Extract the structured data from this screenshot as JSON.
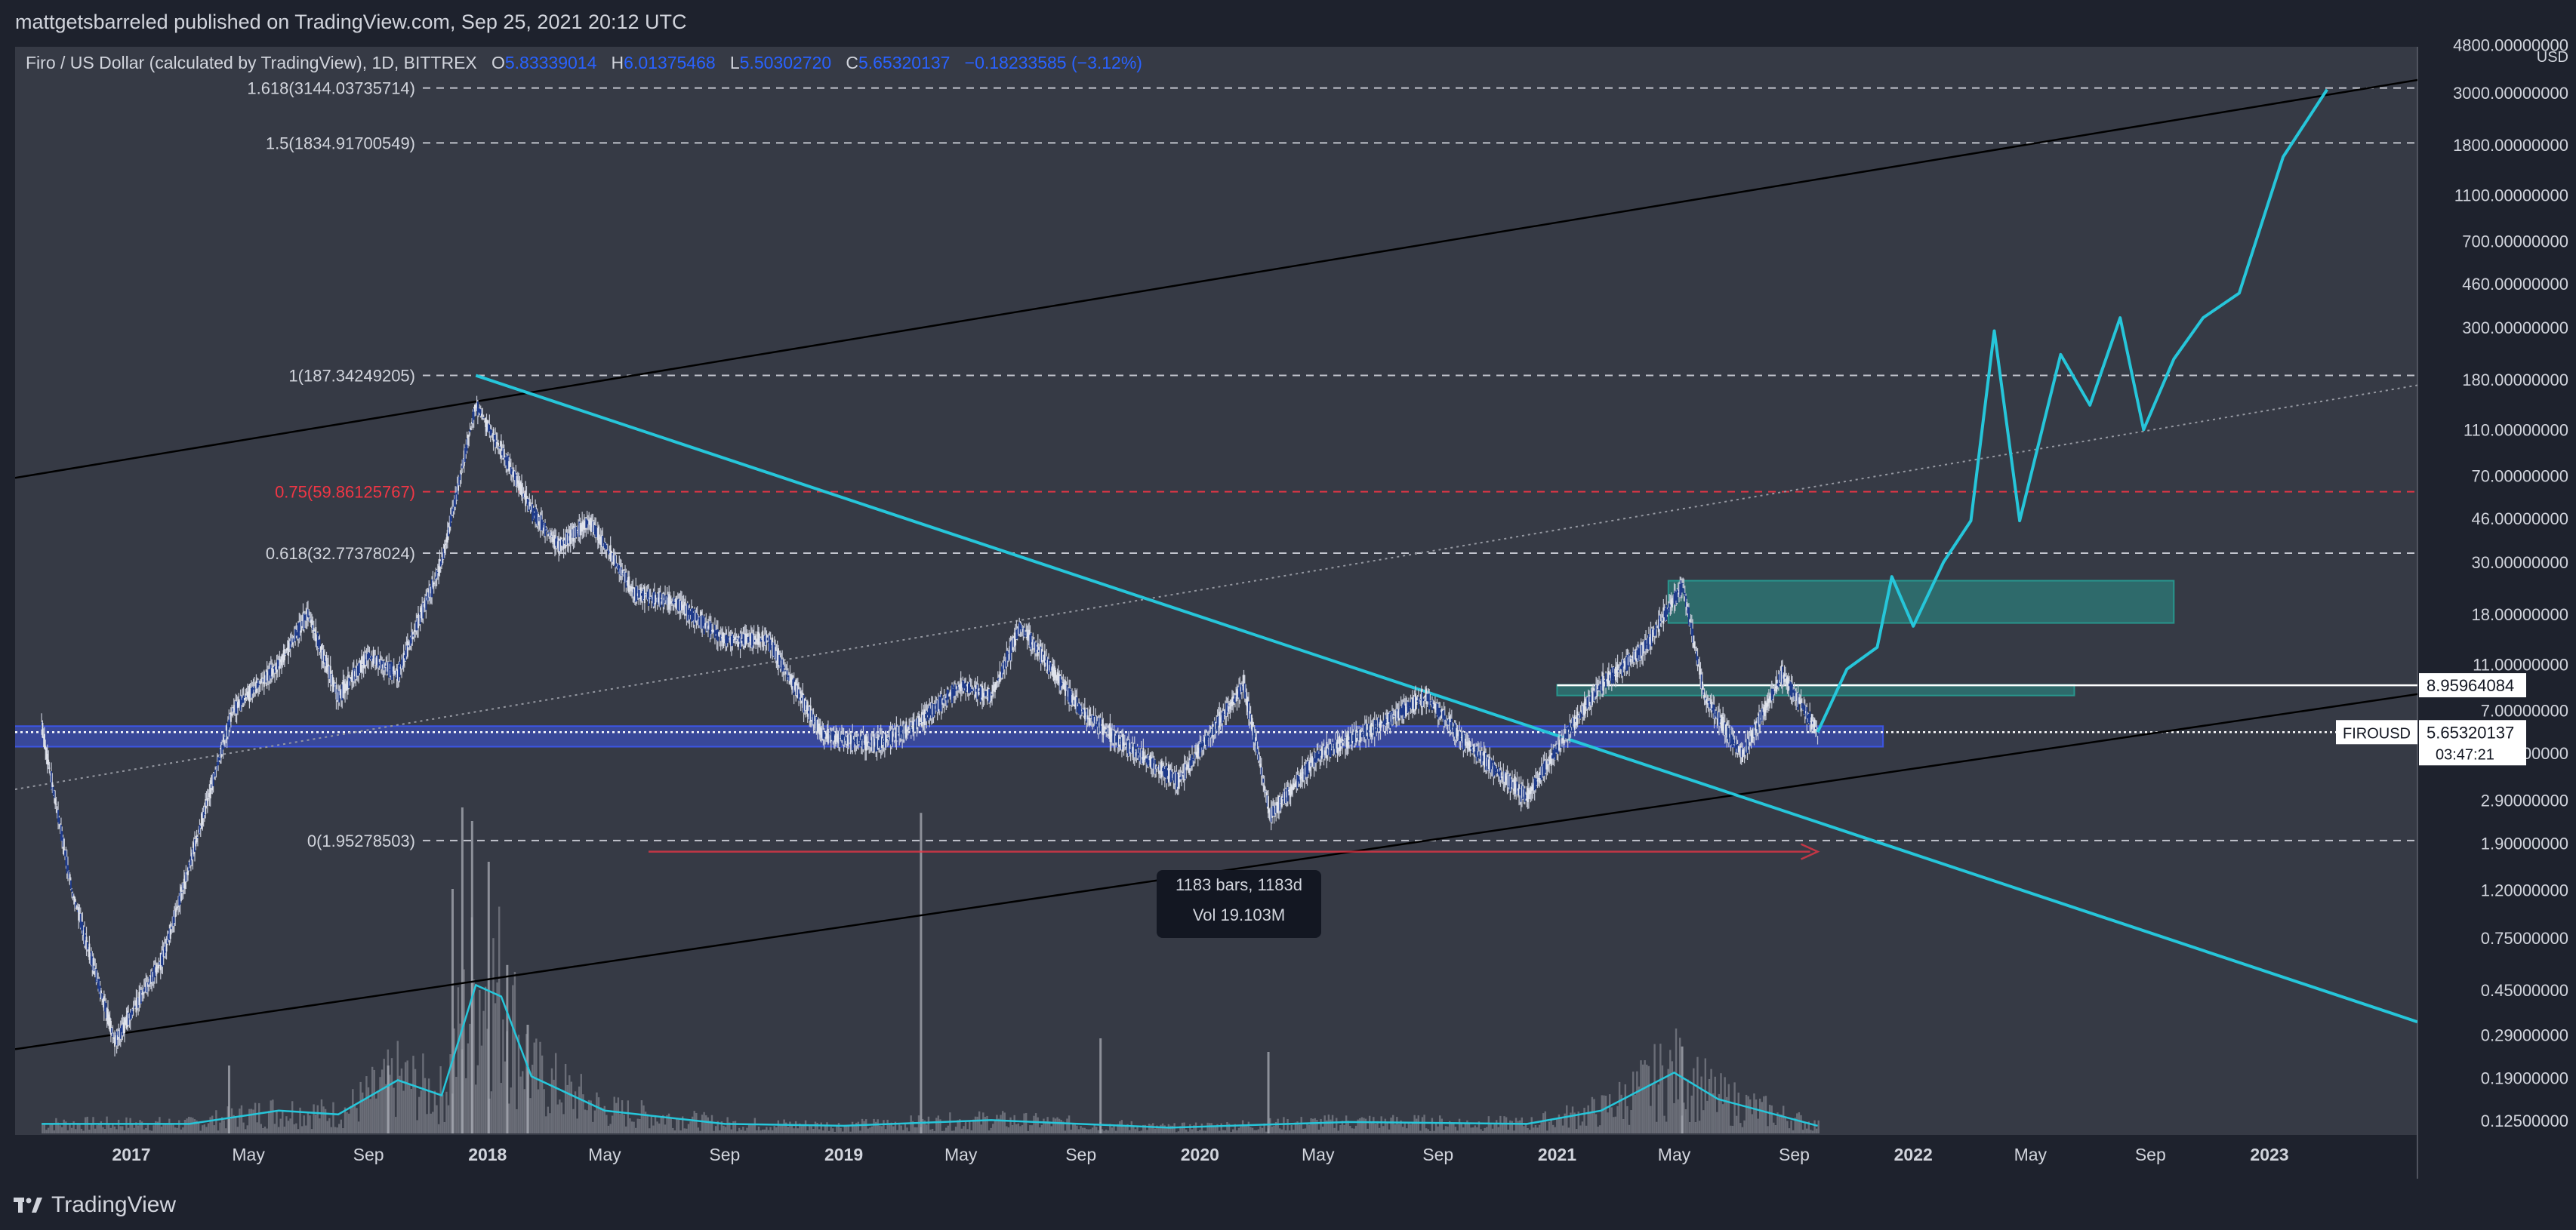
{
  "header": {
    "publish_line": "mattgetsbarreled published on TradingView.com, Sep 25, 2021 20:12 UTC"
  },
  "legend": {
    "symbol": "Firo / US Dollar (calculated by TradingView), 1D, BITTREX",
    "open_label": "O",
    "open": "5.83339014",
    "high_label": "H",
    "high": "6.01375468",
    "low_label": "L",
    "low": "5.50302720",
    "close_label": "C",
    "close": "5.65320137",
    "change": "−0.18233585 (−3.12%)"
  },
  "measure_box": {
    "line1": "1183 bars, 1183d",
    "line2": "Vol 19.103M"
  },
  "price_tags": {
    "level_tag": "8.95964084",
    "symbol_tag": "FIROUSD",
    "current_price": "5.65320137",
    "countdown": "03:47:21"
  },
  "footer": {
    "brand": "TradingView"
  },
  "colors": {
    "background": "#1e222d",
    "plot_background": "#363a45",
    "candle": "#c5c9d6",
    "trendline_cyan": "#26c6da",
    "fib_red": "#f23645",
    "zone_teal": "#26a69a",
    "zone_blue": "#3d5afe",
    "volume_ma": "#26c6da"
  },
  "chart_data": {
    "type": "candlestick",
    "title": "Firo / US Dollar (calculated by TradingView), 1D, BITTREX",
    "yscale": "log",
    "y_axis_unit": "USD",
    "y_ticks": [
      "4800.00000000",
      "3000.00000000",
      "1800.00000000",
      "1100.00000000",
      "700.00000000",
      "460.00000000",
      "300.00000000",
      "180.00000000",
      "110.00000000",
      "70.00000000",
      "46.00000000",
      "30.00000000",
      "18.00000000",
      "11.00000000",
      "7.00000000",
      "4.60000000",
      "2.90000000",
      "1.90000000",
      "1.20000000",
      "0.75000000",
      "0.45000000",
      "0.29000000",
      "0.19000000",
      "0.12500000"
    ],
    "x_ticks": [
      "2017",
      "May",
      "Sep",
      "2018",
      "May",
      "Sep",
      "2019",
      "May",
      "Sep",
      "2020",
      "May",
      "Sep",
      "2021",
      "May",
      "Sep",
      "2022",
      "May",
      "Sep",
      "2023"
    ],
    "fib_levels": [
      {
        "label": "1.618(3144.03735714)",
        "value": 3144.03735714,
        "color": "#d1d4dc"
      },
      {
        "label": "1.5(1834.91700549)",
        "value": 1834.91700549,
        "color": "#d1d4dc"
      },
      {
        "label": "1(187.34249205)",
        "value": 187.34249205,
        "color": "#d1d4dc"
      },
      {
        "label": "0.75(59.86125767)",
        "value": 59.86125767,
        "color": "#f23645"
      },
      {
        "label": "0.618(32.77378024)",
        "value": 32.77378024,
        "color": "#d1d4dc"
      },
      {
        "label": "0(1.95278503)",
        "value": 1.95278503,
        "color": "#d1d4dc"
      }
    ],
    "price_path": [
      [
        "2016-10-01",
        6.0
      ],
      [
        "2016-11-01",
        1.2
      ],
      [
        "2016-12-15",
        0.27
      ],
      [
        "2017-02-01",
        0.6
      ],
      [
        "2017-03-01",
        1.5
      ],
      [
        "2017-04-15",
        7.0
      ],
      [
        "2017-06-01",
        11.0
      ],
      [
        "2017-07-01",
        18.0
      ],
      [
        "2017-08-01",
        8.0
      ],
      [
        "2017-09-01",
        12.0
      ],
      [
        "2017-10-01",
        10.0
      ],
      [
        "2017-11-15",
        30.0
      ],
      [
        "2017-12-20",
        140.0
      ],
      [
        "2018-01-15",
        90.0
      ],
      [
        "2018-02-15",
        50.0
      ],
      [
        "2018-03-15",
        35.0
      ],
      [
        "2018-04-15",
        45.0
      ],
      [
        "2018-06-01",
        22.0
      ],
      [
        "2018-07-15",
        20.0
      ],
      [
        "2018-09-01",
        14.0
      ],
      [
        "2018-10-15",
        14.0
      ],
      [
        "2018-12-10",
        5.5
      ],
      [
        "2019-02-01",
        5.0
      ],
      [
        "2019-03-15",
        6.0
      ],
      [
        "2019-05-01",
        9.0
      ],
      [
        "2019-06-01",
        8.0
      ],
      [
        "2019-07-01",
        16.0
      ],
      [
        "2019-09-01",
        7.0
      ],
      [
        "2019-10-15",
        5.0
      ],
      [
        "2019-12-10",
        3.5
      ],
      [
        "2020-02-15",
        9.0
      ],
      [
        "2020-03-13",
        2.5
      ],
      [
        "2020-05-01",
        4.5
      ],
      [
        "2020-07-01",
        6.0
      ],
      [
        "2020-08-20",
        8.0
      ],
      [
        "2020-10-01",
        5.0
      ],
      [
        "2020-12-01",
        3.0
      ],
      [
        "2021-01-10",
        5.5
      ],
      [
        "2021-02-15",
        9.0
      ],
      [
        "2021-04-01",
        13.0
      ],
      [
        "2021-05-10",
        24.0
      ],
      [
        "2021-06-01",
        8.0
      ],
      [
        "2021-07-10",
        4.5
      ],
      [
        "2021-08-20",
        10.0
      ],
      [
        "2021-09-25",
        5.65
      ]
    ],
    "projection_path": [
      [
        "2021-09-25",
        5.65
      ],
      [
        "2021-10-25",
        10.5
      ],
      [
        "2021-11-25",
        13.0
      ],
      [
        "2021-12-10",
        26.0
      ],
      [
        "2022-01-01",
        16.0
      ],
      [
        "2022-02-01",
        30.0
      ],
      [
        "2022-03-01",
        45.0
      ],
      [
        "2022-03-25",
        290.0
      ],
      [
        "2022-04-20",
        45.0
      ],
      [
        "2022-06-01",
        230.0
      ],
      [
        "2022-07-01",
        140.0
      ],
      [
        "2022-08-01",
        330.0
      ],
      [
        "2022-08-25",
        110.0
      ],
      [
        "2022-09-25",
        220.0
      ],
      [
        "2022-10-25",
        330.0
      ],
      [
        "2022-12-01",
        420.0
      ],
      [
        "2023-01-15",
        1600.0
      ],
      [
        "2023-03-01",
        3100.0
      ]
    ],
    "trendlines": [
      {
        "name": "upper channel",
        "from": [
          "2016-08-01",
          65.0
        ],
        "to": [
          "2023-06-01",
          3400.0
        ],
        "style": "solid",
        "color": "#000000"
      },
      {
        "name": "middle channel",
        "from": [
          "2017-08-01",
          5.5
        ],
        "to": [
          "2023-06-01",
          170.0
        ],
        "style": "dotted",
        "color": "#9598a1"
      },
      {
        "name": "lower channel",
        "from": [
          "2016-08-01",
          0.24
        ],
        "to": [
          "2023-06-01",
          8.2
        ],
        "style": "solid",
        "color": "#000000"
      },
      {
        "name": "descending trendline",
        "from": [
          "2017-12-20",
          187.3
        ],
        "to": [
          "2023-06-01",
          0.33
        ],
        "style": "solid",
        "color": "#26c6da"
      }
    ],
    "zones": [
      {
        "from": "2016-09-01",
        "to": "2021-12-01",
        "low": 4.9,
        "high": 6.0,
        "color": "#3d5afe"
      },
      {
        "from": "2021-01-01",
        "to": "2022-06-15",
        "low": 8.1,
        "high": 9.0,
        "color": "#26a69a"
      },
      {
        "from": "2021-04-25",
        "to": "2022-09-25",
        "low": 16.5,
        "high": 25.0,
        "color": "#26a69a"
      }
    ],
    "horizontal_lines": [
      {
        "value": 8.95964084,
        "style": "solid",
        "color": "#ffffff"
      },
      {
        "value": 5.65320137,
        "style": "dotted",
        "color": "#ffffff"
      }
    ],
    "measure_arrow": {
      "from": "2018-06-15",
      "to": "2021-09-25",
      "value": 1.75,
      "color": "#f23645"
    },
    "volume_ma_path": [
      [
        "2016-10-01",
        0.05
      ],
      [
        "2017-03-01",
        0.05
      ],
      [
        "2017-06-01",
        0.12
      ],
      [
        "2017-08-01",
        0.1
      ],
      [
        "2017-10-01",
        0.28
      ],
      [
        "2017-11-15",
        0.2
      ],
      [
        "2017-12-20",
        0.78
      ],
      [
        "2018-01-15",
        0.72
      ],
      [
        "2018-02-15",
        0.3
      ],
      [
        "2018-05-01",
        0.12
      ],
      [
        "2018-09-01",
        0.05
      ],
      [
        "2019-01-01",
        0.04
      ],
      [
        "2019-06-01",
        0.07
      ],
      [
        "2019-12-01",
        0.03
      ],
      [
        "2020-06-01",
        0.06
      ],
      [
        "2020-12-01",
        0.05
      ],
      [
        "2021-02-15",
        0.12
      ],
      [
        "2021-05-01",
        0.32
      ],
      [
        "2021-06-15",
        0.18
      ],
      [
        "2021-09-25",
        0.04
      ]
    ],
    "volume_spikes": [
      [
        "2017-11-25",
        0.9
      ],
      [
        "2017-12-05",
        1.2
      ],
      [
        "2017-12-15",
        1.15
      ],
      [
        "2018-01-01",
        1.0
      ],
      [
        "2018-01-20",
        0.62
      ],
      [
        "2019-03-20",
        1.18
      ],
      [
        "2019-09-20",
        0.35
      ],
      [
        "2020-03-10",
        0.3
      ],
      [
        "2021-05-08",
        0.32
      ],
      [
        "2017-04-10",
        0.25
      ],
      [
        "2018-02-10",
        0.4
      ],
      [
        "2017-09-20",
        0.25
      ]
    ]
  }
}
